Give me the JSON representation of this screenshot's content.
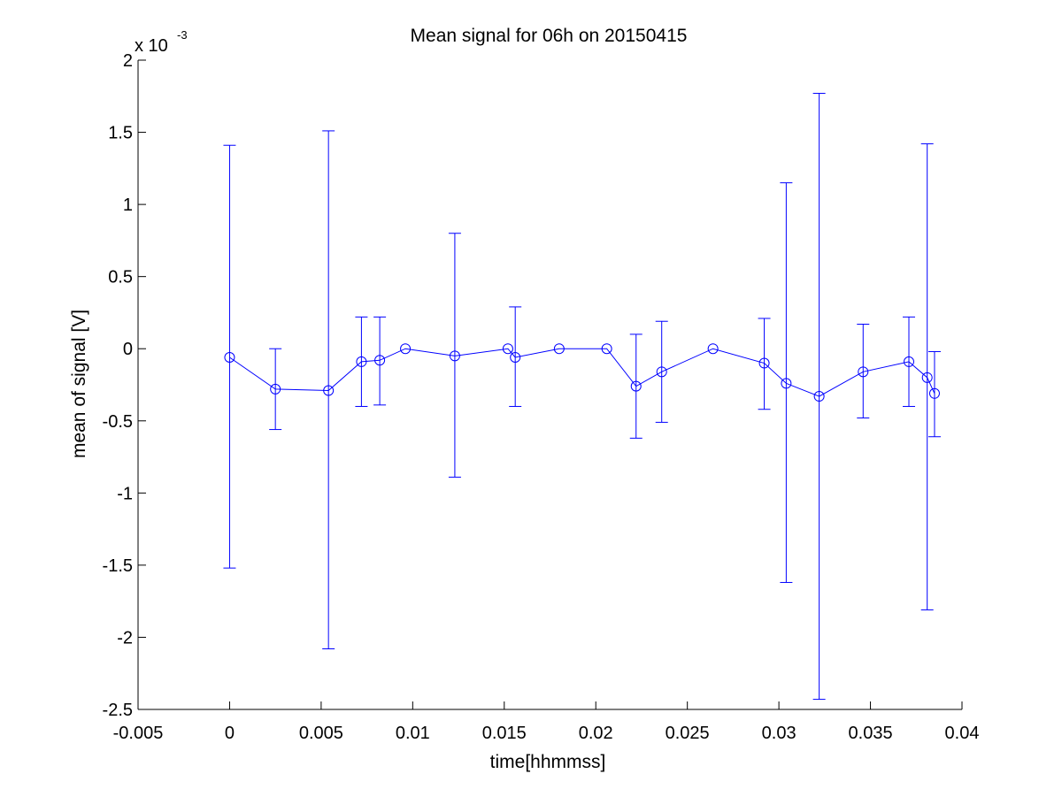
{
  "chart_data": {
    "type": "line",
    "title": "Mean signal for 06h on 20150415",
    "xlabel": "time[hhmmss]",
    "ylabel": "mean of signal [V]",
    "y_exponent_label": "x 10",
    "y_exponent_power": "-3",
    "xlim": [
      -0.005,
      0.04
    ],
    "ylim": [
      -2.5,
      2
    ],
    "y_scale_factor": 0.001,
    "grid": false,
    "legend": "none",
    "color": "#0000ff",
    "xticks": [
      -0.005,
      0,
      0.005,
      0.01,
      0.015,
      0.02,
      0.025,
      0.03,
      0.035,
      0.04
    ],
    "xtick_labels": [
      "-0.005",
      "0",
      "0.005",
      "0.01",
      "0.015",
      "0.02",
      "0.025",
      "0.03",
      "0.035",
      "0.04"
    ],
    "yticks": [
      -2.5,
      -2,
      -1.5,
      -1,
      -0.5,
      0,
      0.5,
      1,
      1.5,
      2
    ],
    "ytick_labels": [
      "-2.5",
      "-2",
      "-1.5",
      "-1",
      "-0.5",
      "0",
      "0.5",
      "1",
      "1.5",
      "2"
    ],
    "series": [
      {
        "marker": "circle",
        "errorbars": true,
        "points": [
          {
            "x": 0.0,
            "y": -0.06,
            "low": -1.52,
            "high": 1.41
          },
          {
            "x": 0.0025,
            "y": -0.28,
            "low": -0.56,
            "high": 0.0
          },
          {
            "x": 0.0054,
            "y": -0.29,
            "low": -2.08,
            "high": 1.51
          },
          {
            "x": 0.0072,
            "y": -0.09,
            "low": -0.4,
            "high": 0.22
          },
          {
            "x": 0.0082,
            "y": -0.08,
            "low": -0.39,
            "high": 0.22
          },
          {
            "x": 0.0096,
            "y": 0.0,
            "low": null,
            "high": null
          },
          {
            "x": 0.0123,
            "y": -0.05,
            "low": -0.89,
            "high": 0.8
          },
          {
            "x": 0.0152,
            "y": 0.0,
            "low": null,
            "high": null
          },
          {
            "x": 0.0156,
            "y": -0.06,
            "low": -0.4,
            "high": 0.29
          },
          {
            "x": 0.018,
            "y": 0.0,
            "low": null,
            "high": null
          },
          {
            "x": 0.0206,
            "y": 0.0,
            "low": null,
            "high": null
          },
          {
            "x": 0.0222,
            "y": -0.26,
            "low": -0.62,
            "high": 0.1
          },
          {
            "x": 0.0236,
            "y": -0.16,
            "low": -0.51,
            "high": 0.19
          },
          {
            "x": 0.0264,
            "y": 0.0,
            "low": null,
            "high": null
          },
          {
            "x": 0.0292,
            "y": -0.1,
            "low": -0.42,
            "high": 0.21
          },
          {
            "x": 0.0304,
            "y": -0.24,
            "low": -1.62,
            "high": 1.15
          },
          {
            "x": 0.0322,
            "y": -0.33,
            "low": -2.43,
            "high": 1.77
          },
          {
            "x": 0.0346,
            "y": -0.16,
            "low": -0.48,
            "high": 0.17
          },
          {
            "x": 0.0371,
            "y": -0.09,
            "low": -0.4,
            "high": 0.22
          },
          {
            "x": 0.0381,
            "y": -0.2,
            "low": -1.81,
            "high": 1.42
          },
          {
            "x": 0.0385,
            "y": -0.31,
            "low": -0.61,
            "high": -0.02
          }
        ]
      }
    ]
  }
}
